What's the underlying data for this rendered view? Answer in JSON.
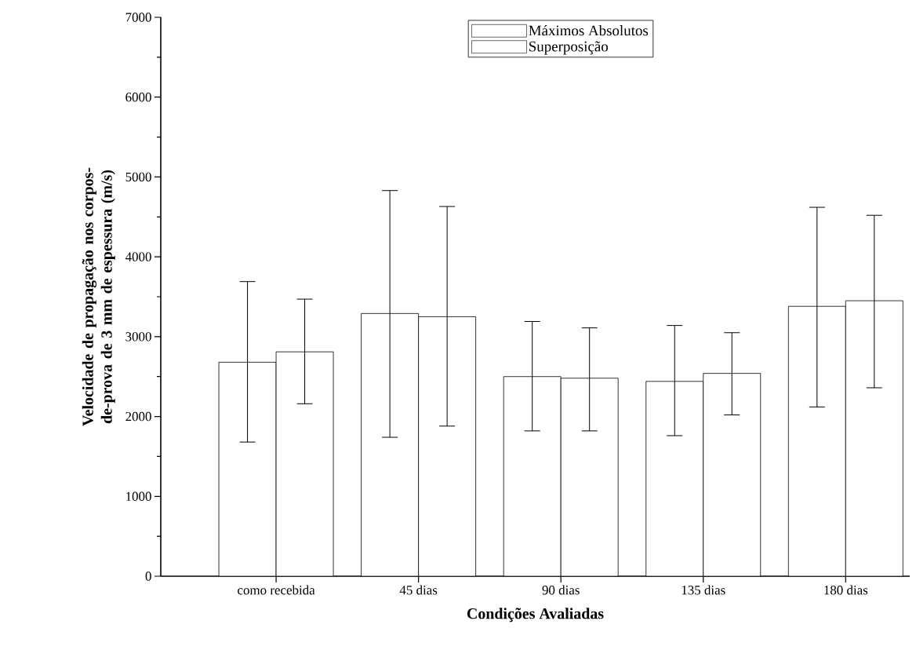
{
  "chart_data": {
    "type": "bar",
    "xlabel": "Condições Avaliadas",
    "ylabel": "Velocidade de propagação nos corpos-de-prova de 3 mm de espessura (m/s)",
    "categories": [
      "como recebida",
      "45 dias",
      "90 dias",
      "135 dias",
      "180 dias"
    ],
    "series": [
      {
        "name": "Máximos Absolutos",
        "color": "#000000",
        "values": [
          2680,
          3290,
          2500,
          2440,
          3380
        ],
        "errors": [
          [
            1680,
            3690
          ],
          [
            1740,
            4830
          ],
          [
            1820,
            3190
          ],
          [
            1760,
            3140
          ],
          [
            2120,
            4620
          ]
        ]
      },
      {
        "name": "Superposição",
        "color": "#000000",
        "values": [
          2810,
          3250,
          2480,
          2540,
          3450
        ],
        "errors": [
          [
            2160,
            3470
          ],
          [
            1880,
            4630
          ],
          [
            1820,
            3110
          ],
          [
            2020,
            3050
          ],
          [
            2360,
            4520
          ]
        ]
      }
    ],
    "ylim": [
      0,
      7000
    ],
    "yticks": [
      0,
      1000,
      2000,
      3000,
      4000,
      5000,
      6000,
      7000
    ],
    "legend": "top"
  }
}
